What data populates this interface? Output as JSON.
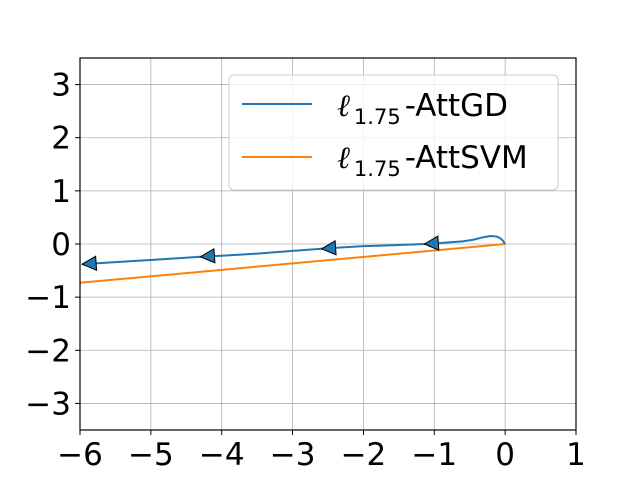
{
  "chart_data": {
    "type": "line",
    "title": "",
    "xlabel": "",
    "ylabel": "",
    "xlim": [
      -6,
      1
    ],
    "ylim": [
      -3.5,
      3.5
    ],
    "grid": true,
    "legend_position": "top-right",
    "x_ticks": [
      -6,
      -5,
      -4,
      -3,
      -2,
      -1,
      0,
      1
    ],
    "y_ticks": [
      -3,
      -2,
      -1,
      0,
      1,
      2,
      3
    ],
    "x_tick_labels": [
      "−6",
      "−5",
      "−4",
      "−3",
      "−2",
      "−1",
      "0",
      "1"
    ],
    "y_tick_labels": [
      "−3",
      "−2",
      "−1",
      "0",
      "1",
      "2",
      "3"
    ],
    "series": [
      {
        "name": "AttGD",
        "legend_label": {
          "ell": "ℓ",
          "sub": "1.75",
          "suffix": "-AttGD"
        },
        "color": "#1f77b4",
        "x": [
          0.0,
          -0.03,
          -0.07,
          -0.12,
          -0.2,
          -0.3,
          -0.45,
          -0.6,
          -0.8,
          -1.0,
          -1.14,
          -1.5,
          -2.0,
          -2.5,
          -2.59,
          -3.0,
          -3.5,
          -4.0,
          -4.3,
          -5.0,
          -5.5,
          -5.97
        ],
        "y": [
          0.0,
          0.06,
          0.11,
          0.14,
          0.15,
          0.13,
          0.08,
          0.05,
          0.03,
          0.01,
          0.0,
          -0.02,
          -0.04,
          -0.08,
          -0.09,
          -0.13,
          -0.18,
          -0.22,
          -0.24,
          -0.3,
          -0.34,
          -0.38
        ],
        "arrows": [
          {
            "x": -1.14,
            "y": 0.0
          },
          {
            "x": -2.59,
            "y": -0.09
          },
          {
            "x": -4.3,
            "y": -0.24
          },
          {
            "x": -5.97,
            "y": -0.38
          }
        ]
      },
      {
        "name": "AttSVM",
        "legend_label": {
          "ell": "ℓ",
          "sub": "1.75",
          "suffix": "-AttSVM"
        },
        "color": "#ff7f0e",
        "x": [
          0.0,
          -6.0
        ],
        "y": [
          0.0,
          -0.73
        ]
      }
    ]
  }
}
